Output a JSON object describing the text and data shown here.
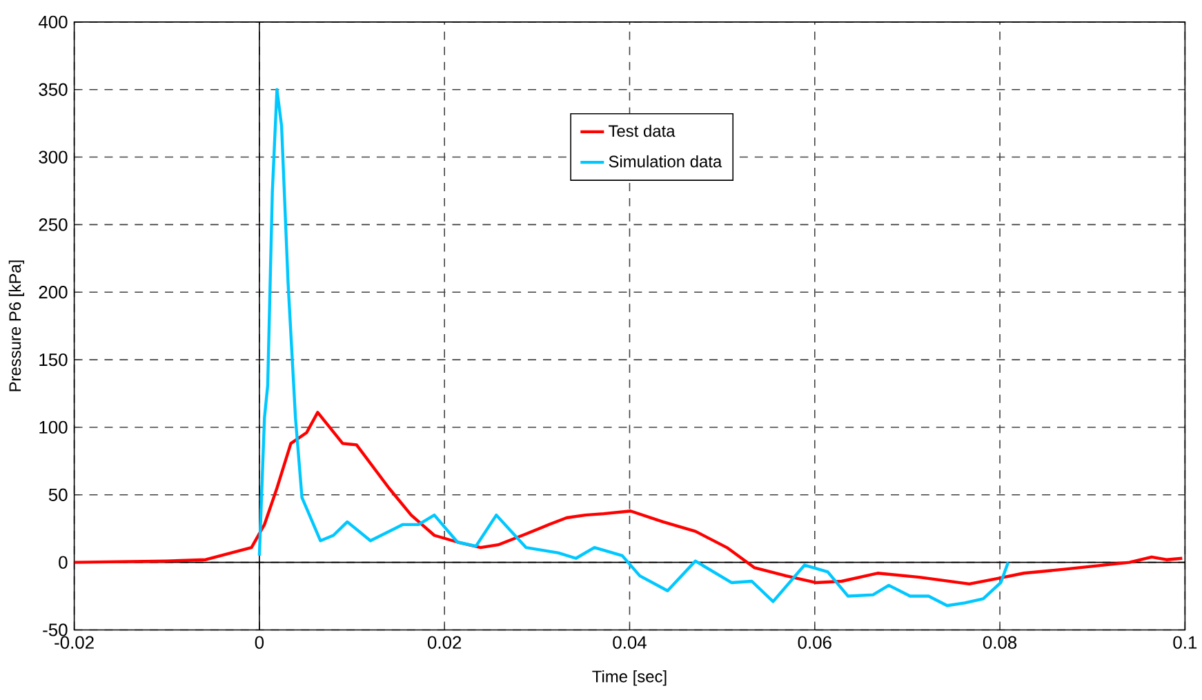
{
  "chart_data": {
    "type": "line",
    "xlabel": "Time [sec]",
    "ylabel": "Pressure P6 [kPa]",
    "xlim": [
      -0.02,
      0.1
    ],
    "ylim": [
      -50,
      400
    ],
    "xticks": [
      -0.02,
      0,
      0.02,
      0.04,
      0.06,
      0.08,
      0.1
    ],
    "yticks": [
      -50,
      0,
      50,
      100,
      150,
      200,
      250,
      300,
      350,
      400
    ],
    "grid": true,
    "legend": "top",
    "series": [
      {
        "name": "Test data",
        "color": "#ff0000",
        "x": [
          -0.02,
          -0.01,
          -0.0058,
          -0.00085,
          0.00055,
          0.0019,
          0.0034,
          0.0051,
          0.0063,
          0.009,
          0.0105,
          0.014,
          0.0164,
          0.0189,
          0.0214,
          0.0239,
          0.0258,
          0.0288,
          0.0313,
          0.0332,
          0.0352,
          0.0372,
          0.0401,
          0.0436,
          0.0471,
          0.0505,
          0.0535,
          0.0569,
          0.0601,
          0.0629,
          0.0668,
          0.0713,
          0.0767,
          0.0797,
          0.0826,
          0.0871,
          0.094,
          0.0964,
          0.098,
          0.0997
        ],
        "values": [
          0,
          1,
          2,
          11,
          28,
          55,
          88,
          96,
          111,
          88,
          87,
          55,
          35,
          20,
          15,
          11,
          13,
          21,
          28,
          33,
          35,
          36,
          38,
          30,
          23,
          11,
          -4,
          -10,
          -15,
          -14,
          -8,
          -11,
          -16,
          -12,
          -8,
          -5,
          0,
          4,
          2,
          3
        ]
      },
      {
        "name": "Simulation data",
        "color": "#00c8ff",
        "x": [
          0.0,
          0.00055,
          0.0009,
          0.0014,
          0.0019,
          0.0024,
          0.0031,
          0.0039,
          0.0046,
          0.0066,
          0.008,
          0.0095,
          0.012,
          0.0155,
          0.0172,
          0.0189,
          0.0214,
          0.0234,
          0.0256,
          0.0288,
          0.0323,
          0.0342,
          0.0362,
          0.0392,
          0.0411,
          0.0441,
          0.0471,
          0.051,
          0.0532,
          0.0555,
          0.0589,
          0.0614,
          0.0636,
          0.0663,
          0.068,
          0.0703,
          0.0723,
          0.0743,
          0.0762,
          0.0782,
          0.0801,
          0.0809
        ],
        "values": [
          5,
          107,
          131,
          274,
          350,
          323,
          207,
          107,
          48,
          16,
          20,
          30,
          16,
          28,
          28,
          35,
          15,
          12,
          35,
          11,
          7,
          3,
          11,
          5,
          -10,
          -21,
          1,
          -15,
          -14,
          -29,
          -2,
          -7,
          -25,
          -24,
          -17,
          -25,
          -25,
          -32,
          -30,
          -27,
          -15,
          0
        ]
      }
    ]
  }
}
